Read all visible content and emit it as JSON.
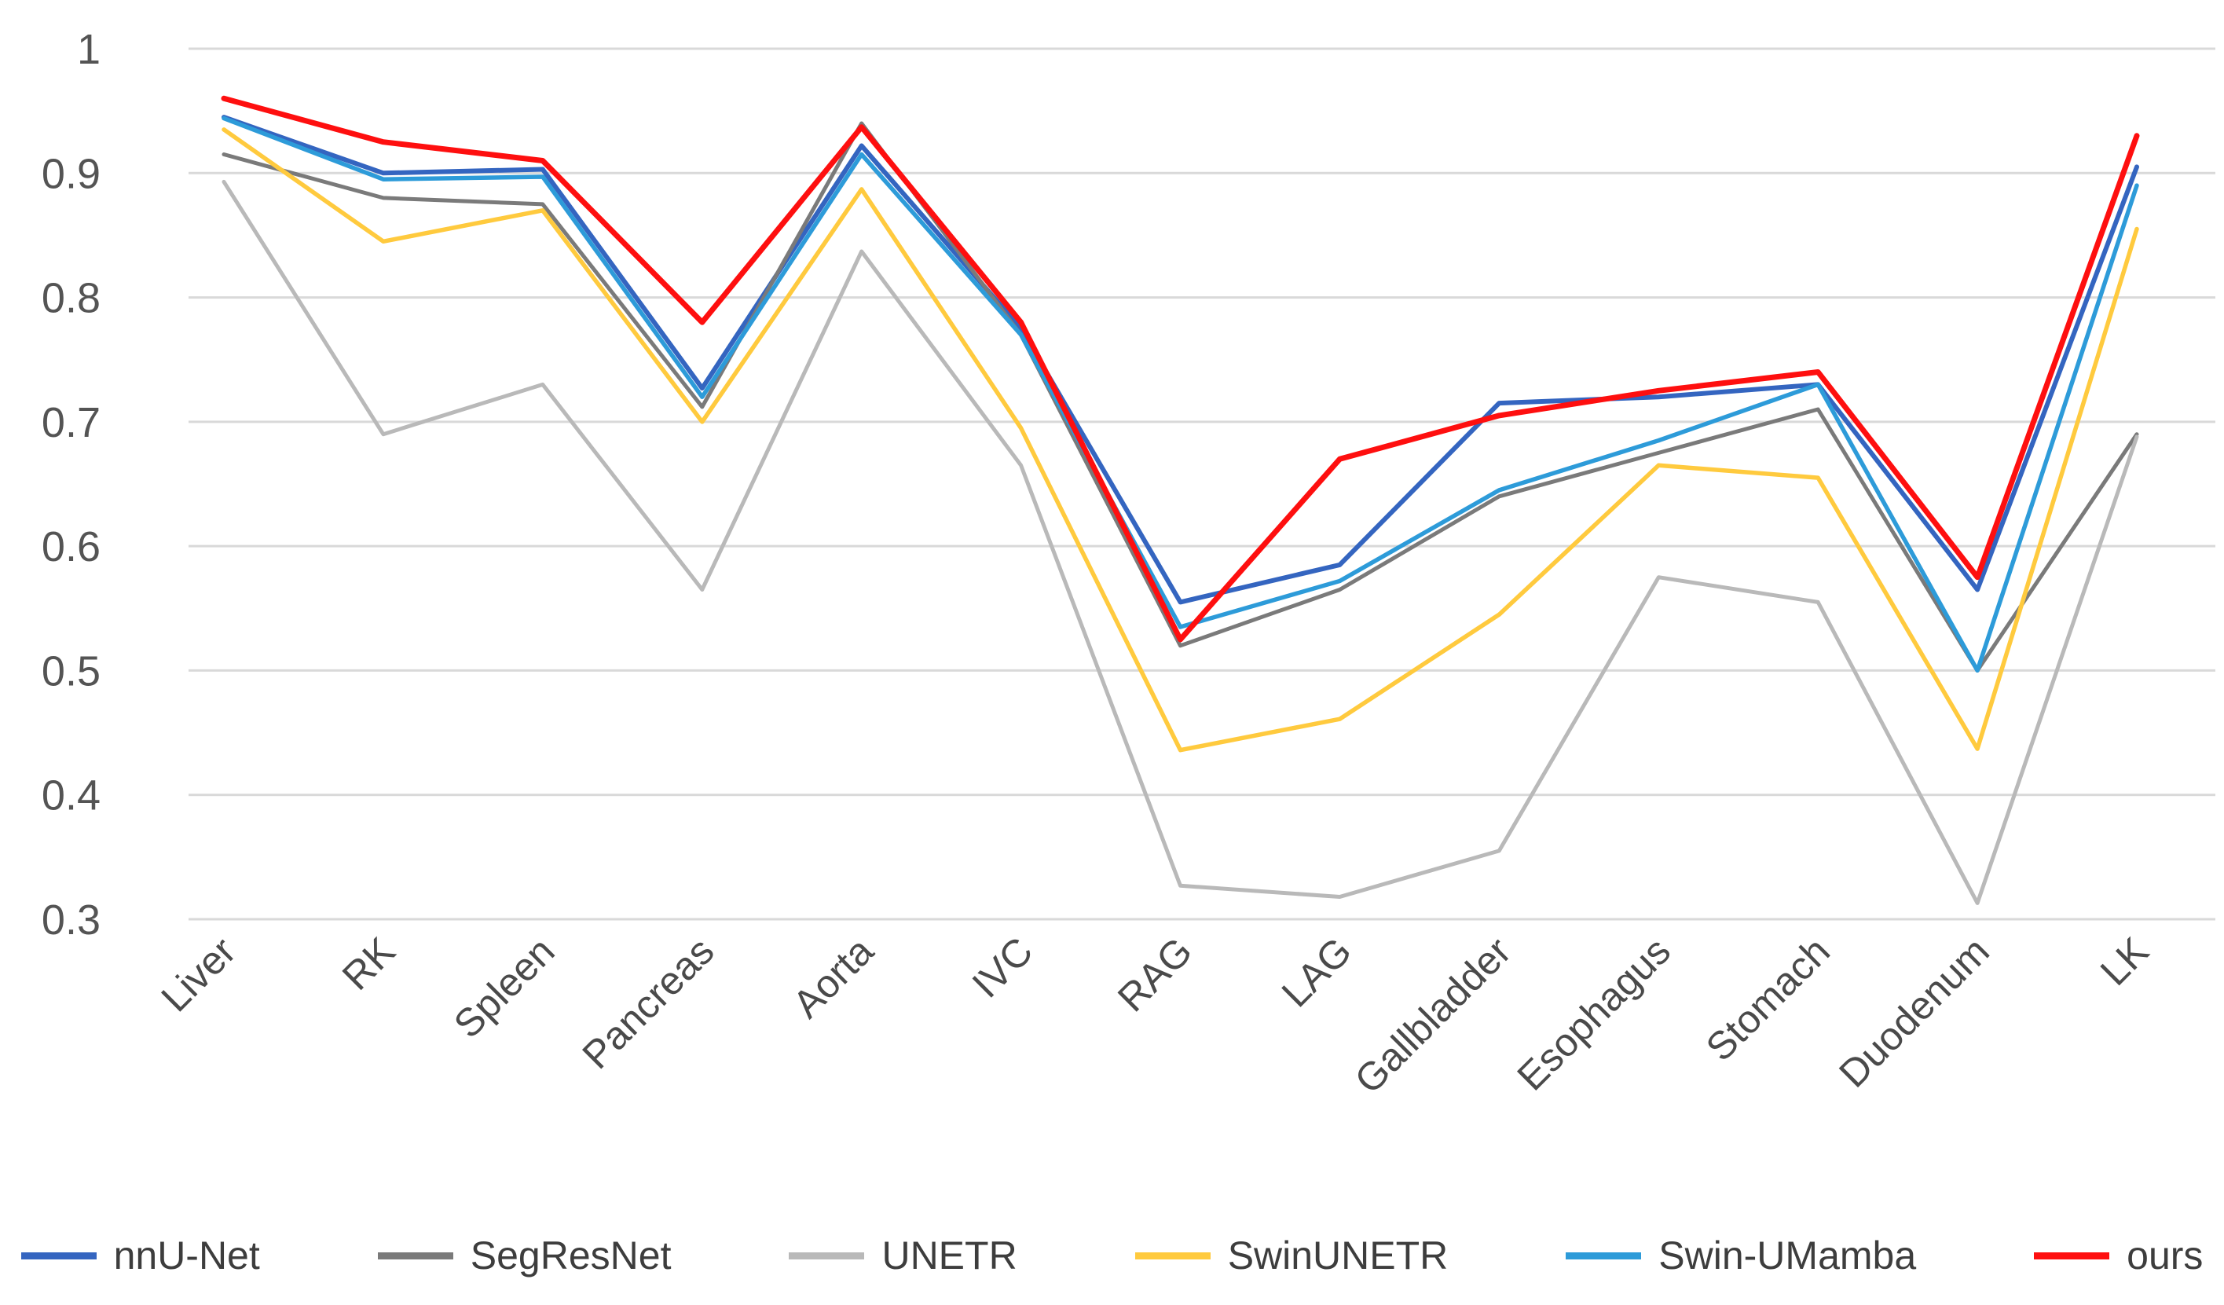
{
  "chart_data": {
    "type": "line",
    "title": "",
    "xlabel": "",
    "ylabel": "",
    "categories": [
      "Liver",
      "RK",
      "Spleen",
      "Pancreas",
      "Aorta",
      "IVC",
      "RAG",
      "LAG",
      "Gallbladder",
      "Esophagus",
      "Stomach",
      "Duodenum",
      "LK"
    ],
    "series": [
      {
        "name": "nnU-Net",
        "color": "#3465c0",
        "stroke_width": 6.0,
        "values": [
          0.945,
          0.9,
          0.903,
          0.727,
          0.922,
          0.775,
          0.555,
          0.585,
          0.715,
          0.72,
          0.73,
          0.565,
          0.905
        ]
      },
      {
        "name": "SegResNet",
        "color": "#7a7a7a",
        "stroke_width": 5.0,
        "values": [
          0.915,
          0.88,
          0.875,
          0.712,
          0.94,
          0.77,
          0.52,
          0.565,
          0.64,
          0.675,
          0.71,
          0.5,
          0.69
        ]
      },
      {
        "name": "UNETR",
        "color": "#b9b9b9",
        "stroke_width": 5.0,
        "values": [
          0.893,
          0.69,
          0.73,
          0.565,
          0.837,
          0.665,
          0.327,
          0.318,
          0.355,
          0.575,
          0.555,
          0.313,
          0.688
        ]
      },
      {
        "name": "SwinUNETR",
        "color": "#ffca3e",
        "stroke_width": 5.5,
        "values": [
          0.935,
          0.845,
          0.87,
          0.7,
          0.887,
          0.695,
          0.436,
          0.461,
          0.545,
          0.665,
          0.655,
          0.437,
          0.855
        ]
      },
      {
        "name": "Swin-UMamba",
        "color": "#2d9bd9",
        "stroke_width": 5.5,
        "values": [
          0.944,
          0.895,
          0.897,
          0.72,
          0.915,
          0.77,
          0.535,
          0.572,
          0.645,
          0.685,
          0.73,
          0.5,
          0.89
        ]
      },
      {
        "name": "ours",
        "color": "#fe0f0f",
        "stroke_width": 7.0,
        "values": [
          0.96,
          0.925,
          0.91,
          0.78,
          0.937,
          0.78,
          0.525,
          0.67,
          0.705,
          0.725,
          0.74,
          0.575,
          0.93
        ]
      }
    ],
    "ylim": [
      0.3,
      1.0
    ],
    "yticks": [
      1,
      0.9,
      0.8,
      0.7,
      0.6,
      0.5,
      0.4,
      0.3
    ],
    "ytick_labels": [
      "1",
      "0.9",
      "0.8",
      "0.7",
      "0.6",
      "0.5",
      "0.4",
      "0.3"
    ],
    "grid": "horizontal",
    "gridline_color": "#d9d9d9",
    "legend_position": "bottom",
    "x_label_rotation_deg": 45
  }
}
